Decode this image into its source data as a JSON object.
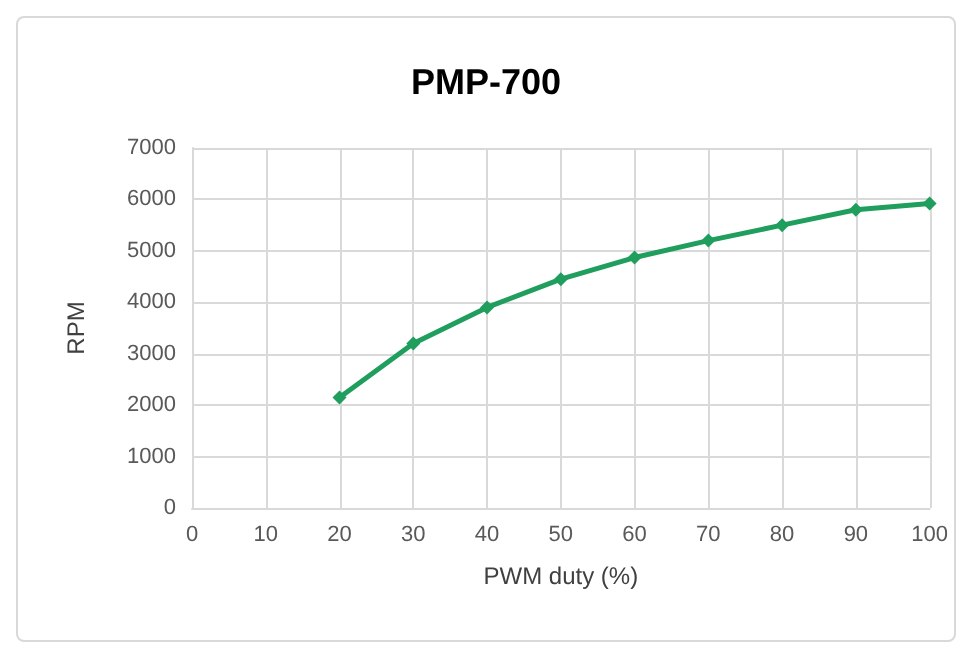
{
  "chart_data": {
    "type": "line",
    "title": "PMP-700",
    "xlabel": "PWM duty (%)",
    "ylabel": "RPM",
    "x": [
      20,
      30,
      40,
      50,
      60,
      70,
      80,
      90,
      100
    ],
    "series": [
      {
        "color": "#1f9e5e",
        "values": [
          2150,
          3200,
          3900,
          4450,
          4870,
          5200,
          5500,
          5800,
          5920
        ]
      }
    ],
    "xlim": [
      0,
      100
    ],
    "xticks": [
      0,
      10,
      20,
      30,
      40,
      50,
      60,
      70,
      80,
      90,
      100
    ],
    "ylim": [
      0,
      7000
    ],
    "yticks": [
      0,
      1000,
      2000,
      3000,
      4000,
      5000,
      6000,
      7000
    ],
    "grid": true,
    "marker": "diamond",
    "line_style": "solid"
  }
}
